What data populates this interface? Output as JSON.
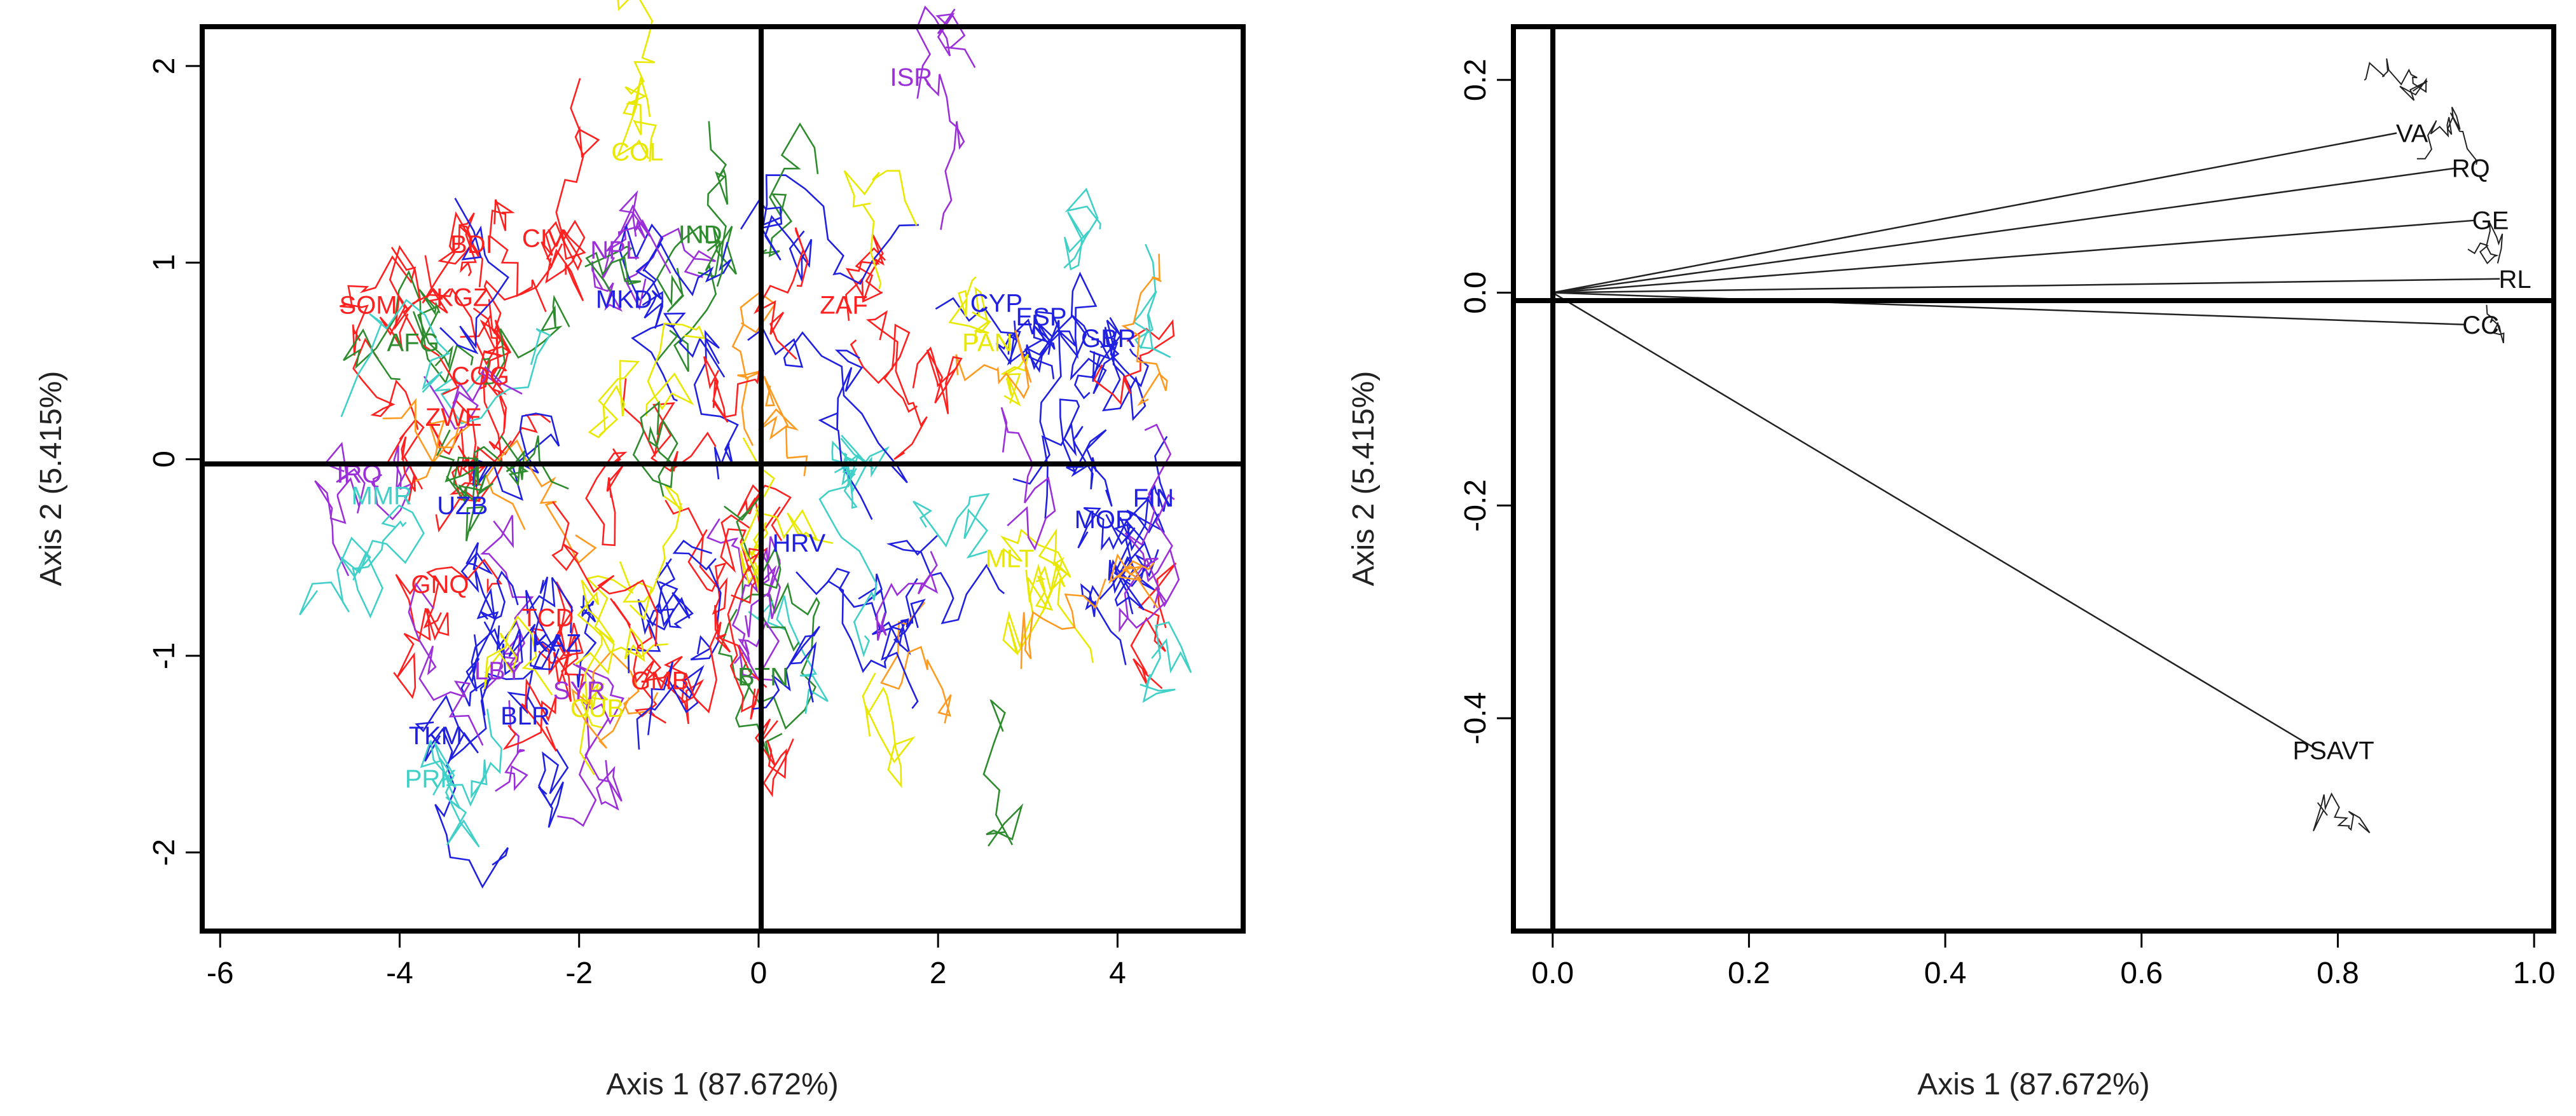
{
  "chart_data": [
    {
      "type": "scatter",
      "title": "",
      "xlabel": "Axis 1 (87.672%)",
      "ylabel": "Axis 2 (5.415%)",
      "xlim": [
        -6.2,
        5.4
      ],
      "ylim": [
        -2.4,
        2.2
      ],
      "xticks": [
        "-6",
        "-4",
        "-2",
        "0",
        "2",
        "4"
      ],
      "yticks": [
        "-2",
        "-1",
        "0",
        "1",
        "2"
      ],
      "reference_lines": {
        "x": 0,
        "y": 0
      },
      "labels": [
        {
          "text": "ISR",
          "x": 1.7,
          "y": 1.9,
          "color": "#9b30d9"
        },
        {
          "text": "COL",
          "x": -1.35,
          "y": 1.52,
          "color": "#e8e800"
        },
        {
          "text": "BDI",
          "x": -3.2,
          "y": 1.05,
          "color": "#ff2020"
        },
        {
          "text": "CIV",
          "x": -2.4,
          "y": 1.08,
          "color": "#ff2020"
        },
        {
          "text": "NPL",
          "x": -1.6,
          "y": 1.02,
          "color": "#9b30d9"
        },
        {
          "text": "IND",
          "x": -0.65,
          "y": 1.1,
          "color": "#2e8b2e"
        },
        {
          "text": "SOM",
          "x": -4.35,
          "y": 0.74,
          "color": "#ff2020"
        },
        {
          "text": "KGZ",
          "x": -3.3,
          "y": 0.78,
          "color": "#ff2020"
        },
        {
          "text": "MKD",
          "x": -1.5,
          "y": 0.77,
          "color": "#2020e0"
        },
        {
          "text": "ZAF",
          "x": 0.95,
          "y": 0.74,
          "color": "#ff2020"
        },
        {
          "text": "CYP",
          "x": 2.65,
          "y": 0.75,
          "color": "#2020e0"
        },
        {
          "text": "ESP",
          "x": 3.15,
          "y": 0.68,
          "color": "#2020e0"
        },
        {
          "text": "GBR",
          "x": 3.9,
          "y": 0.57,
          "color": "#2020e0"
        },
        {
          "text": "AFG",
          "x": -3.85,
          "y": 0.55,
          "color": "#2e8b2e"
        },
        {
          "text": "PAN",
          "x": 2.55,
          "y": 0.55,
          "color": "#e8e800"
        },
        {
          "text": "COG",
          "x": -3.1,
          "y": 0.38,
          "color": "#ff2020"
        },
        {
          "text": "ZWE",
          "x": -3.4,
          "y": 0.17,
          "color": "#ff2020"
        },
        {
          "text": "IRQ",
          "x": -4.45,
          "y": -0.12,
          "color": "#9b30d9"
        },
        {
          "text": "MMR",
          "x": -4.2,
          "y": -0.23,
          "color": "#40d0c8"
        },
        {
          "text": "UZB",
          "x": -3.3,
          "y": -0.28,
          "color": "#2020e0"
        },
        {
          "text": "HRV",
          "x": 0.45,
          "y": -0.47,
          "color": "#2020e0"
        },
        {
          "text": "MOR",
          "x": 3.85,
          "y": -0.35,
          "color": "#2020e0"
        },
        {
          "text": "FIN",
          "x": 4.4,
          "y": -0.24,
          "color": "#2020e0"
        },
        {
          "text": "MLT",
          "x": 2.8,
          "y": -0.55,
          "color": "#e8e800"
        },
        {
          "text": "GNQ",
          "x": -3.55,
          "y": -0.68,
          "color": "#ff2020"
        },
        {
          "text": "TCD",
          "x": -2.35,
          "y": -0.85,
          "color": "#ff2020"
        },
        {
          "text": "KAZ",
          "x": -2.25,
          "y": -0.98,
          "color": "#2020e0"
        },
        {
          "text": "LBY",
          "x": -2.9,
          "y": -1.12,
          "color": "#9b30d9"
        },
        {
          "text": "GMB",
          "x": -1.1,
          "y": -1.17,
          "color": "#ff2020"
        },
        {
          "text": "SYR",
          "x": -2.0,
          "y": -1.22,
          "color": "#9b30d9"
        },
        {
          "text": "BTN",
          "x": 0.05,
          "y": -1.15,
          "color": "#2e8b2e"
        },
        {
          "text": "BLR",
          "x": -2.6,
          "y": -1.35,
          "color": "#2020e0"
        },
        {
          "text": "CUB",
          "x": -1.8,
          "y": -1.31,
          "color": "#e8e800"
        },
        {
          "text": "TKM",
          "x": -3.6,
          "y": -1.45,
          "color": "#2020e0"
        },
        {
          "text": "PRK",
          "x": -3.65,
          "y": -1.67,
          "color": "#40d0c8"
        }
      ]
    },
    {
      "type": "scatter",
      "title": "",
      "xlabel": "Axis 1 (87.672%)",
      "ylabel": "Axis 2 (5.415%)",
      "xlim": [
        -0.04,
        1.02
      ],
      "ylim": [
        -0.6,
        0.25
      ],
      "xticks": [
        "0.0",
        "0.2",
        "0.4",
        "0.6",
        "0.8",
        "1.0"
      ],
      "yticks": [
        "-0.4",
        "-0.2",
        "0.0",
        "0.2"
      ],
      "reference_lines": {
        "x": 0,
        "y": 0
      },
      "vectors": [
        {
          "text": "VA",
          "x": 0.86,
          "y": 0.15
        },
        {
          "text": "RQ",
          "x": 0.92,
          "y": 0.117
        },
        {
          "text": "GE",
          "x": 0.94,
          "y": 0.068
        },
        {
          "text": "RL",
          "x": 0.965,
          "y": 0.013
        },
        {
          "text": "CC",
          "x": 0.93,
          "y": -0.03
        },
        {
          "text": "PSAVT",
          "x": 0.78,
          "y": -0.43
        }
      ]
    }
  ]
}
